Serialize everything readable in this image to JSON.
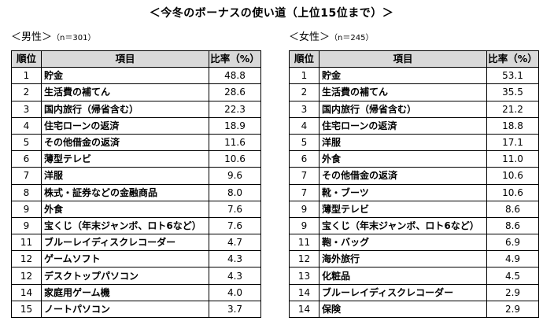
{
  "title": "＜今冬のボーナスの使い道（上位15位まで）＞",
  "male": {
    "caption": "＜男性＞",
    "n_label": "（n＝301）",
    "headers": [
      "順位",
      "項目",
      "比率（%）"
    ],
    "rows": [
      {
        "rank": "1",
        "item": "貯金",
        "pct": "48.8"
      },
      {
        "rank": "2",
        "item": "生活費の補てん",
        "pct": "28.6"
      },
      {
        "rank": "3",
        "item": "国内旅行（帰省含む）",
        "pct": "22.3"
      },
      {
        "rank": "4",
        "item": "住宅ローンの返済",
        "pct": "18.9"
      },
      {
        "rank": "5",
        "item": "その他借金の返済",
        "pct": "11.6"
      },
      {
        "rank": "6",
        "item": "薄型テレビ",
        "pct": "10.6"
      },
      {
        "rank": "7",
        "item": "洋服",
        "pct": "9.6"
      },
      {
        "rank": "8",
        "item": "株式・証券などの金融商品",
        "pct": "8.0"
      },
      {
        "rank": "9",
        "item": "外食",
        "pct": "7.6"
      },
      {
        "rank": "9",
        "item": "宝くじ（年末ジャンボ、ロト6など）",
        "pct": "7.6"
      },
      {
        "rank": "11",
        "item": "ブルーレイディスクレコーダー",
        "pct": "4.7"
      },
      {
        "rank": "12",
        "item": "ゲームソフト",
        "pct": "4.3"
      },
      {
        "rank": "12",
        "item": "デスクトップパソコン",
        "pct": "4.3"
      },
      {
        "rank": "14",
        "item": "家庭用ゲーム機",
        "pct": "4.0"
      },
      {
        "rank": "15",
        "item": "ノートパソコン",
        "pct": "3.7"
      }
    ]
  },
  "female": {
    "caption": "＜女性＞",
    "n_label": "（n＝245）",
    "headers": [
      "順位",
      "項目",
      "比率（%）"
    ],
    "rows": [
      {
        "rank": "1",
        "item": "貯金",
        "pct": "53.1"
      },
      {
        "rank": "2",
        "item": "生活費の補てん",
        "pct": "35.5"
      },
      {
        "rank": "3",
        "item": "国内旅行（帰省含む）",
        "pct": "21.2"
      },
      {
        "rank": "4",
        "item": "住宅ローンの返済",
        "pct": "18.8"
      },
      {
        "rank": "5",
        "item": "洋服",
        "pct": "17.1"
      },
      {
        "rank": "6",
        "item": "外食",
        "pct": "11.0"
      },
      {
        "rank": "7",
        "item": "その他借金の返済",
        "pct": "10.6"
      },
      {
        "rank": "7",
        "item": "靴・ブーツ",
        "pct": "10.6"
      },
      {
        "rank": "9",
        "item": "薄型テレビ",
        "pct": "8.6"
      },
      {
        "rank": "9",
        "item": "宝くじ（年末ジャンボ、ロト6など）",
        "pct": "8.6"
      },
      {
        "rank": "11",
        "item": "鞄・バッグ",
        "pct": "6.9"
      },
      {
        "rank": "12",
        "item": "海外旅行",
        "pct": "4.9"
      },
      {
        "rank": "13",
        "item": "化粧品",
        "pct": "4.5"
      },
      {
        "rank": "14",
        "item": "ブルーレイディスクレコーダー",
        "pct": "2.9"
      },
      {
        "rank": "14",
        "item": "保険",
        "pct": "2.9"
      }
    ]
  }
}
